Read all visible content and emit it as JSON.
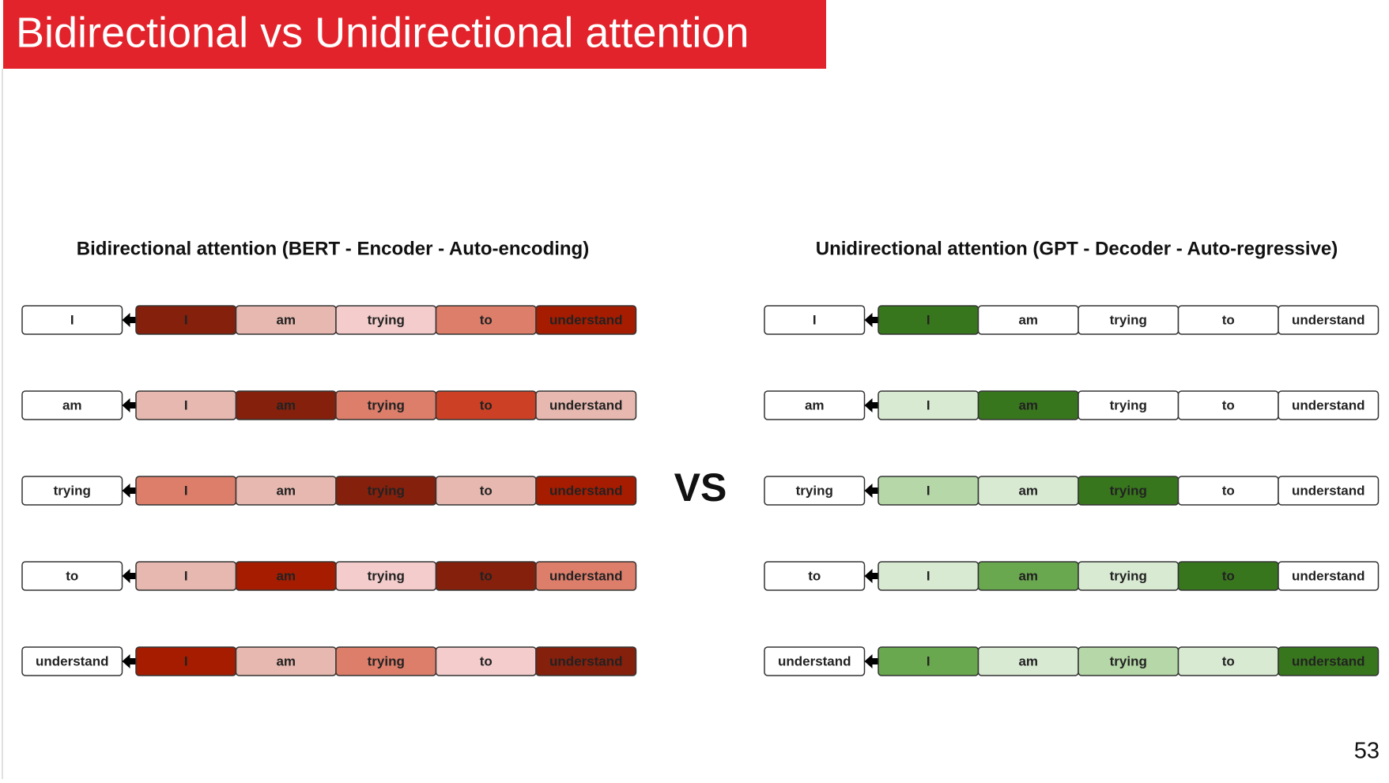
{
  "header": {
    "title": "Bidirectional vs Unidirectional attention"
  },
  "panels": [
    {
      "title": "Bidirectional attention  (BERT - Encoder - Auto-encoding)",
      "tokens": [
        "I",
        "am",
        "trying",
        "to",
        "understand"
      ],
      "colors": [
        [
          "#85200c",
          "#e6b8af",
          "#f4cccc",
          "#dd7e6b",
          "#a61c00"
        ],
        [
          "#e6b8af",
          "#85200c",
          "#dd7e6b",
          "#cc4125",
          "#e6b8af"
        ],
        [
          "#dd7e6b",
          "#e6b8af",
          "#85200c",
          "#e6b8af",
          "#a61c00"
        ],
        [
          "#e6b8af",
          "#a61c00",
          "#f4cccc",
          "#85200c",
          "#dd7e6b"
        ],
        [
          "#a61c00",
          "#e6b8af",
          "#dd7e6b",
          "#f4cccc",
          "#85200c"
        ]
      ]
    },
    {
      "title": "Unidirectional attention  (GPT - Decoder - Auto-regressive)",
      "tokens": [
        "I",
        "am",
        "trying",
        "to",
        "understand"
      ],
      "colors": [
        [
          "#38761d",
          "#ffffff",
          "#ffffff",
          "#ffffff",
          "#ffffff"
        ],
        [
          "#d9ead3",
          "#38761d",
          "#ffffff",
          "#ffffff",
          "#ffffff"
        ],
        [
          "#b6d7a8",
          "#d9ead3",
          "#38761d",
          "#ffffff",
          "#ffffff"
        ],
        [
          "#d9ead3",
          "#6aa84f",
          "#d9ead3",
          "#38761d",
          "#ffffff"
        ],
        [
          "#6aa84f",
          "#d9ead3",
          "#b6d7a8",
          "#d9ead3",
          "#38761d"
        ]
      ]
    }
  ],
  "vs": "VS",
  "page_number": "53"
}
